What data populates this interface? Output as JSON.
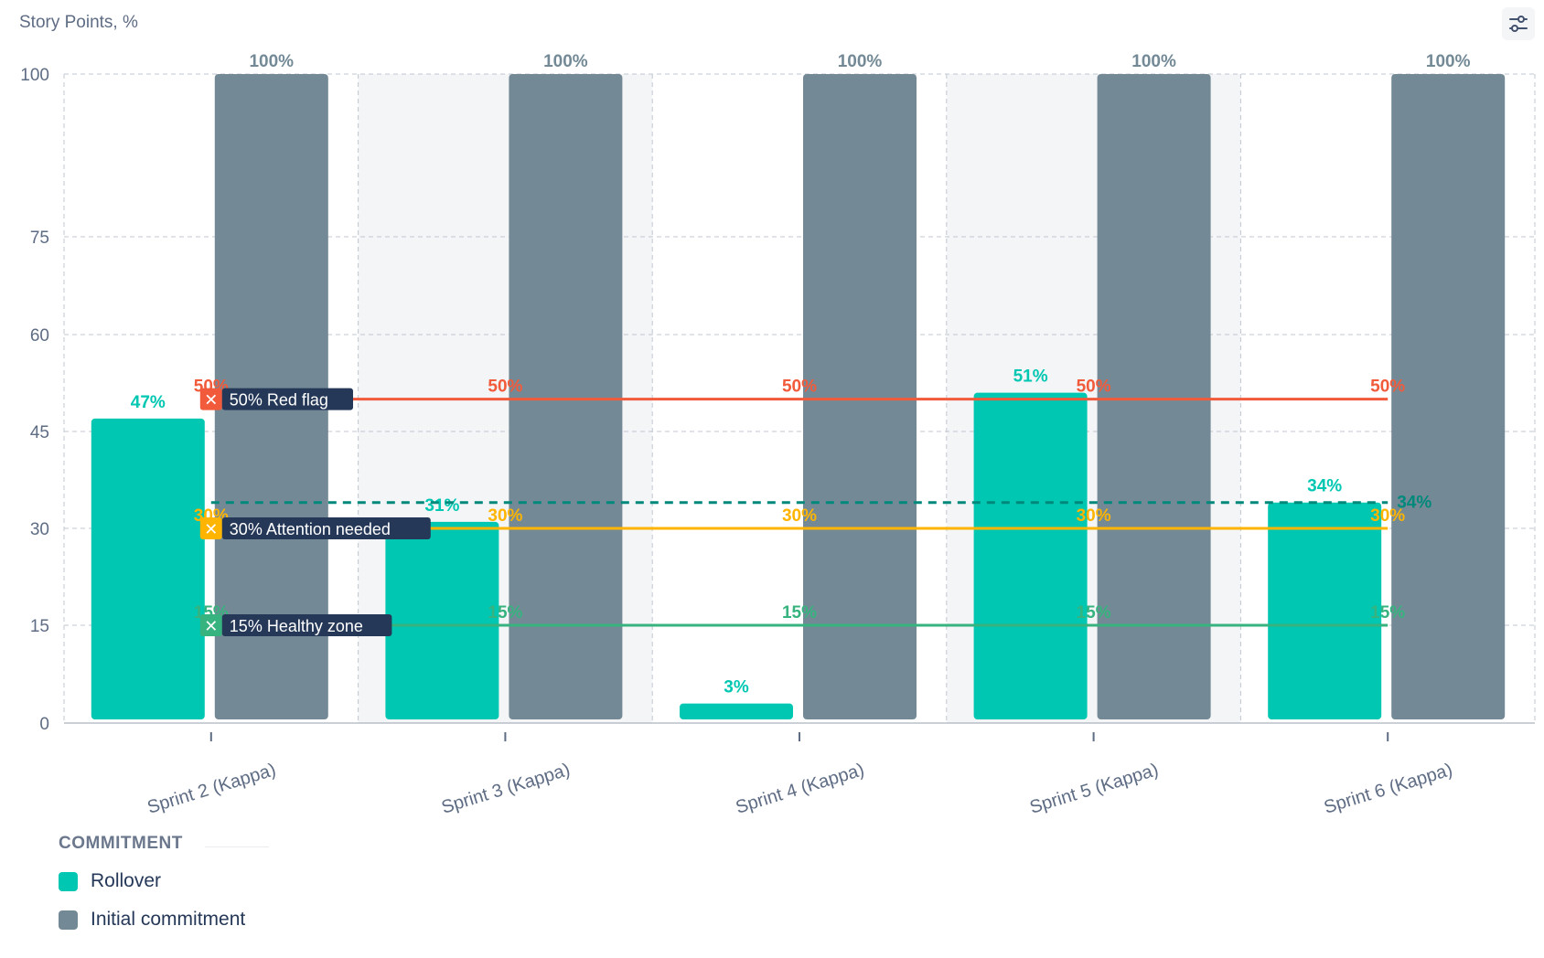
{
  "chart_data": {
    "type": "bar",
    "ylabel": "Story Points, %",
    "ylim": [
      0,
      100
    ],
    "yticks": [
      0,
      15,
      30,
      45,
      60,
      75,
      100
    ],
    "categories": [
      "Sprint 2 (Kappa)",
      "Sprint 3 (Kappa)",
      "Sprint 4 (Kappa)",
      "Sprint 5 (Kappa)",
      "Sprint 6 (Kappa)"
    ],
    "series": [
      {
        "name": "Rollover",
        "color": "#00c7b1",
        "values": [
          47,
          31,
          3,
          51,
          34
        ],
        "labels": [
          "47%",
          "31%",
          "3%",
          "51%",
          "34%"
        ]
      },
      {
        "name": "Initial commitment",
        "color": "#738a96",
        "values": [
          100,
          100,
          100,
          100,
          100
        ],
        "labels": [
          "100%",
          "100%",
          "100%",
          "100%",
          "100%"
        ]
      }
    ],
    "thresholds": [
      {
        "label": "50% Red flag",
        "value": 50,
        "value_label": "50%",
        "color": "#f15a3a"
      },
      {
        "label": "30% Attention needed",
        "value": 30,
        "value_label": "30%",
        "color": "#ffb400"
      },
      {
        "label": "15% Healthy zone",
        "value": 15,
        "value_label": "15%",
        "color": "#36b37e"
      }
    ],
    "average": {
      "value": 34,
      "label": "34%",
      "color": "#00897b"
    },
    "grid": true,
    "legend": {
      "title": "COMMITMENT",
      "position": "bottom-left"
    }
  },
  "colors": {
    "rollover": "#00c7b1",
    "commitment": "#738a96",
    "band": "#f4f5f7",
    "grid": "#c1c7d0",
    "axis_text": "#5e6c84"
  },
  "icons": {
    "settings": "sliders-icon",
    "threshold_marker": "close-icon"
  }
}
